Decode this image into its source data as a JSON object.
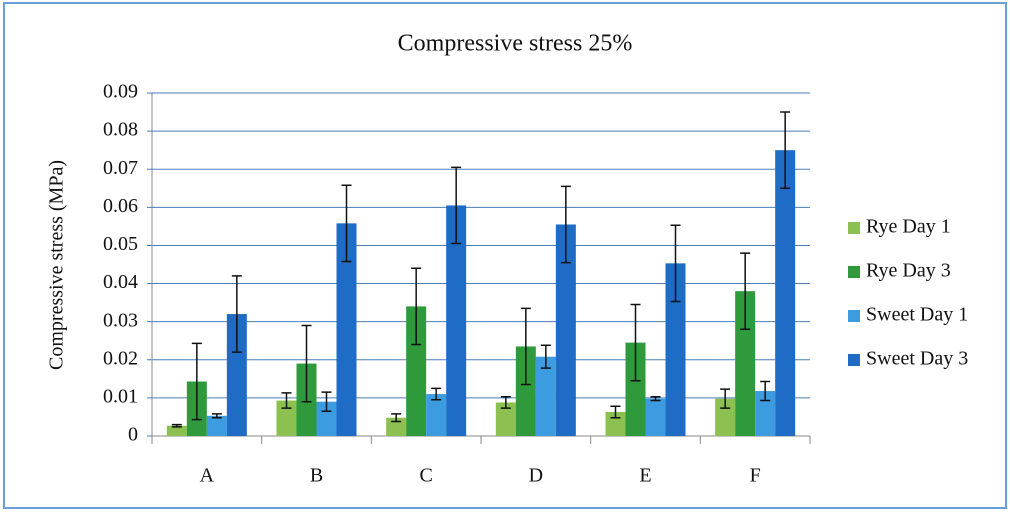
{
  "chart_data": {
    "type": "bar",
    "title": "Compressive stress 25%",
    "y_label": "Compressive stress (MPa)",
    "categories": [
      "A",
      "B",
      "C",
      "D",
      "E",
      "F"
    ],
    "series": [
      {
        "name": "Rye Day 1",
        "color": "#8cc152",
        "values": [
          0.0027,
          0.0093,
          0.0048,
          0.0088,
          0.0063,
          0.0098
        ],
        "errors": [
          0.0003,
          0.002,
          0.001,
          0.0015,
          0.0015,
          0.0025
        ]
      },
      {
        "name": "Rye Day 3",
        "color": "#2e9a3c",
        "values": [
          0.0143,
          0.019,
          0.034,
          0.0235,
          0.0245,
          0.038
        ],
        "errors": [
          0.01,
          0.01,
          0.01,
          0.01,
          0.01,
          0.01
        ]
      },
      {
        "name": "Sweet Day 1",
        "color": "#3d9be0",
        "values": [
          0.0053,
          0.009,
          0.011,
          0.0208,
          0.0098,
          0.0118
        ],
        "errors": [
          0.0005,
          0.0025,
          0.0015,
          0.003,
          0.0005,
          0.0025
        ]
      },
      {
        "name": "Sweet Day 3",
        "color": "#1f6cc6",
        "values": [
          0.032,
          0.0558,
          0.0605,
          0.0555,
          0.0453,
          0.075
        ],
        "errors": [
          0.01,
          0.01,
          0.01,
          0.01,
          0.01,
          0.01
        ]
      }
    ],
    "ylim": [
      0,
      0.09
    ],
    "yticks": [
      0,
      0.01,
      0.02,
      0.03,
      0.04,
      0.05,
      0.06,
      0.07,
      0.08,
      0.09
    ],
    "grid": true,
    "legend": "right"
  }
}
